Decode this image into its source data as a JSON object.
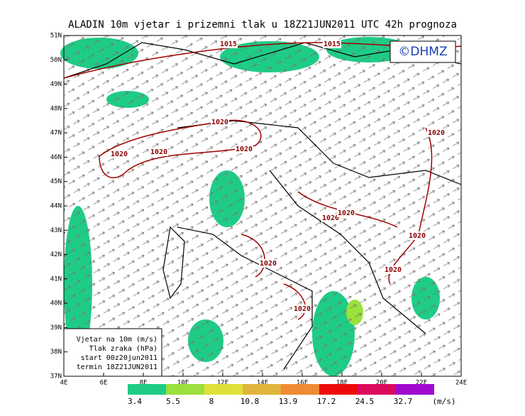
{
  "header": {
    "title": "ALADIN  10m  vjetar  i  prizemni  tlak  u  18Z21JUN2011  UTC  42h  prognoza",
    "logo": "©DHMZ"
  },
  "map": {
    "lon_ticks": [
      {
        "value": 4,
        "label": "4E"
      },
      {
        "value": 6,
        "label": "6E"
      },
      {
        "value": 8,
        "label": "8E"
      },
      {
        "value": 10,
        "label": "10E"
      },
      {
        "value": 12,
        "label": "12E"
      },
      {
        "value": 14,
        "label": "14E"
      },
      {
        "value": 16,
        "label": "16E"
      },
      {
        "value": 18,
        "label": "18E"
      },
      {
        "value": 20,
        "label": "20E"
      },
      {
        "value": 22,
        "label": "22E"
      },
      {
        "value": 24,
        "label": "24E"
      }
    ],
    "lat_ticks": [
      {
        "value": 37,
        "label": "37N"
      },
      {
        "value": 38,
        "label": "38N"
      },
      {
        "value": 39,
        "label": "39N"
      },
      {
        "value": 40,
        "label": "40N"
      },
      {
        "value": 41,
        "label": "41N"
      },
      {
        "value": 42,
        "label": "42N"
      },
      {
        "value": 43,
        "label": "43N"
      },
      {
        "value": 44,
        "label": "44N"
      },
      {
        "value": 45,
        "label": "45N"
      },
      {
        "value": 46,
        "label": "46N"
      },
      {
        "value": 47,
        "label": "47N"
      },
      {
        "value": 48,
        "label": "48N"
      },
      {
        "value": 49,
        "label": "49N"
      },
      {
        "value": 50,
        "label": "50N"
      },
      {
        "value": 51,
        "label": "51N"
      }
    ],
    "lonlim": [
      4,
      24
    ],
    "latlim": [
      37,
      51
    ],
    "isobar_labels": [
      "1015",
      "1015",
      "1020",
      "1020",
      "1020",
      "1020",
      "1020",
      "1020",
      "1020",
      "1020",
      "1020",
      "1020",
      "1020"
    ],
    "info": [
      "Vjetar na 10m (m/s)",
      "Tlak zraka (hPa)",
      "start 00z20jun2011",
      "termin 18Z21JUN2011"
    ]
  },
  "colorbar": {
    "unit": "(m/s)",
    "levels": [
      3.4,
      5.5,
      8,
      10.8,
      13.9,
      17.2,
      24.5,
      32.7
    ],
    "colors": [
      "#1ecc86",
      "#9be03c",
      "#e0e03a",
      "#e0b43a",
      "#f08a34",
      "#ee0a0a",
      "#dc0a5c",
      "#a00ad0"
    ]
  }
}
